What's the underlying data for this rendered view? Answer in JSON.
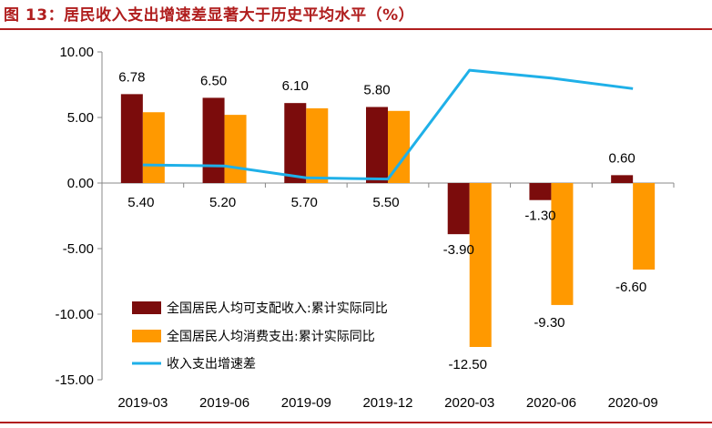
{
  "figure": {
    "title": "图 13：居民收入支出增速差显著大于历史平均水平（%）"
  },
  "colors": {
    "title_red": "#b01e1e",
    "income_bar": "#7b0c0c",
    "consumption_bar": "#ff9900",
    "gap_line": "#1fb0e8",
    "axis": "#888888"
  },
  "chart_data": {
    "type": "bar",
    "categories": [
      "2019-03",
      "2019-06",
      "2019-09",
      "2019-12",
      "2020-03",
      "2020-06",
      "2020-09"
    ],
    "ylim": [
      -15,
      10
    ],
    "yticks": [
      "10.00",
      "5.00",
      "0.00",
      "-5.00",
      "-10.00",
      "-15.00"
    ],
    "grid": false,
    "legend_position": "bottom-left",
    "series": [
      {
        "name": "全国居民人均可支配收入:累计实际同比",
        "kind": "bar",
        "color": "#7b0c0c",
        "values": [
          6.78,
          6.5,
          6.1,
          5.8,
          -3.9,
          -1.3,
          0.6
        ],
        "labels": [
          "6.78",
          "6.50",
          "6.10",
          "5.80",
          "-3.90",
          "-1.30",
          "0.60"
        ]
      },
      {
        "name": "全国居民人均消费支出:累计实际同比",
        "kind": "bar",
        "color": "#ff9900",
        "values": [
          5.4,
          5.2,
          5.7,
          5.5,
          -12.5,
          -9.3,
          -6.6
        ],
        "labels": [
          "5.40",
          "5.20",
          "5.70",
          "5.50",
          "-12.50",
          "-9.30",
          "-6.60"
        ]
      },
      {
        "name": "收入支出增速差",
        "kind": "line",
        "color": "#1fb0e8",
        "values": [
          1.38,
          1.3,
          0.4,
          0.3,
          8.6,
          8.0,
          7.2
        ]
      }
    ]
  }
}
